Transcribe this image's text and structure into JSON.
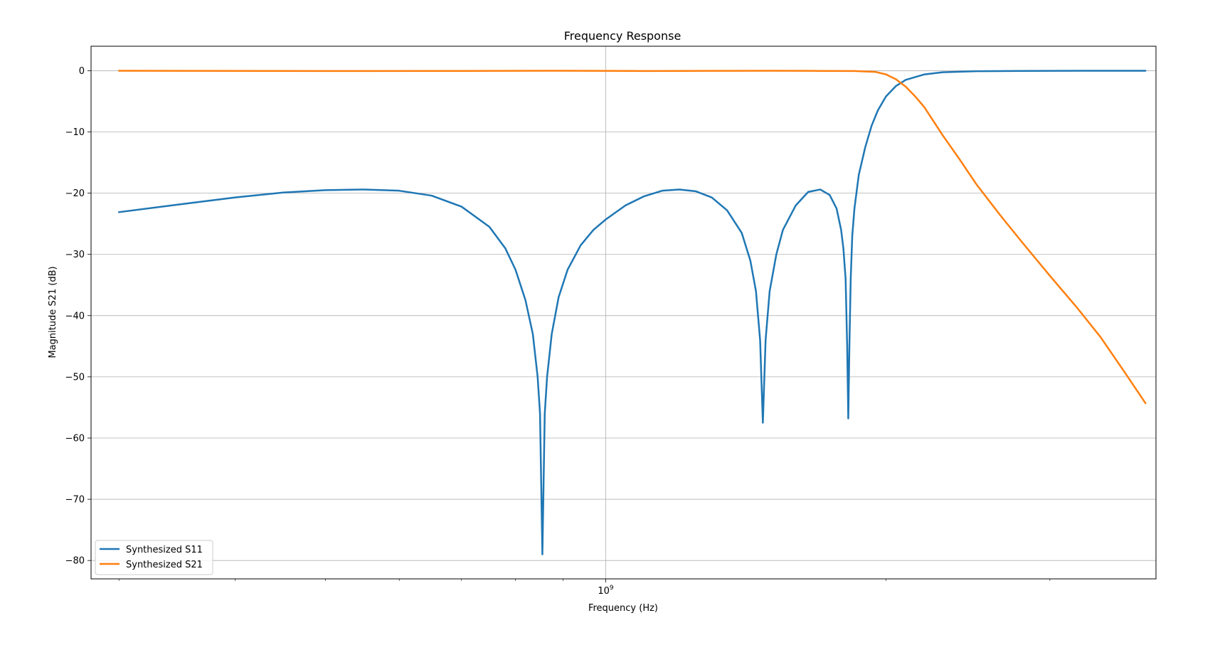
{
  "chart_data": {
    "type": "line",
    "title": "Frequency Response",
    "xlabel": "Frequency (Hz)",
    "ylabel": "Magnitude S21 (dB)",
    "xscale": "log",
    "xlim": [
      280000000,
      3900000000
    ],
    "ylim": [
      -83,
      4
    ],
    "x_ticks": [
      {
        "value": 1000000000,
        "label_base": "10",
        "label_exp": "9"
      }
    ],
    "y_ticks": [
      {
        "value": 0,
        "label": "0"
      },
      {
        "value": -10,
        "label": "−10"
      },
      {
        "value": -20,
        "label": "−20"
      },
      {
        "value": -30,
        "label": "−30"
      },
      {
        "value": -40,
        "label": "−40"
      },
      {
        "value": -50,
        "label": "−50"
      },
      {
        "value": -60,
        "label": "−60"
      },
      {
        "value": -70,
        "label": "−70"
      },
      {
        "value": -80,
        "label": "−80"
      }
    ],
    "grid": true,
    "legend": "lower-left",
    "series": [
      {
        "name": "Synthesized S11",
        "color": "#1f77b4",
        "points": [
          [
            300000000,
            -23.1
          ],
          [
            350000000,
            -21.8
          ],
          [
            400000000,
            -20.7
          ],
          [
            450000000,
            -19.9
          ],
          [
            500000000,
            -19.5
          ],
          [
            550000000,
            -19.4
          ],
          [
            600000000,
            -19.6
          ],
          [
            650000000,
            -20.4
          ],
          [
            700000000,
            -22.2
          ],
          [
            750000000,
            -25.5
          ],
          [
            780000000,
            -29.0
          ],
          [
            800000000,
            -32.5
          ],
          [
            820000000,
            -37.5
          ],
          [
            835000000,
            -43.0
          ],
          [
            845000000,
            -50.0
          ],
          [
            850000000,
            -56.0
          ],
          [
            855000000,
            -79.0
          ],
          [
            860000000,
            -56.0
          ],
          [
            865000000,
            -50.0
          ],
          [
            875000000,
            -43.0
          ],
          [
            890000000,
            -37.0
          ],
          [
            910000000,
            -32.5
          ],
          [
            940000000,
            -28.5
          ],
          [
            970000000,
            -26.0
          ],
          [
            1000000000,
            -24.3
          ],
          [
            1050000000,
            -22.0
          ],
          [
            1100000000,
            -20.5
          ],
          [
            1150000000,
            -19.6
          ],
          [
            1200000000,
            -19.4
          ],
          [
            1250000000,
            -19.7
          ],
          [
            1300000000,
            -20.7
          ],
          [
            1350000000,
            -22.8
          ],
          [
            1400000000,
            -26.5
          ],
          [
            1430000000,
            -31.0
          ],
          [
            1450000000,
            -36.0
          ],
          [
            1465000000,
            -44.0
          ],
          [
            1475000000,
            -57.5
          ],
          [
            1485000000,
            -44.0
          ],
          [
            1500000000,
            -36.0
          ],
          [
            1525000000,
            -30.0
          ],
          [
            1550000000,
            -26.0
          ],
          [
            1600000000,
            -22.0
          ],
          [
            1650000000,
            -19.8
          ],
          [
            1700000000,
            -19.4
          ],
          [
            1740000000,
            -20.3
          ],
          [
            1770000000,
            -22.5
          ],
          [
            1790000000,
            -26.0
          ],
          [
            1800000000,
            -29.0
          ],
          [
            1810000000,
            -34.0
          ],
          [
            1817000000,
            -45.0
          ],
          [
            1822000000,
            -56.8
          ],
          [
            1827000000,
            -45.0
          ],
          [
            1833000000,
            -34.0
          ],
          [
            1840000000,
            -27.0
          ],
          [
            1850000000,
            -22.5
          ],
          [
            1870000000,
            -17.0
          ],
          [
            1900000000,
            -12.5
          ],
          [
            1930000000,
            -9.0
          ],
          [
            1960000000,
            -6.5
          ],
          [
            2000000000,
            -4.2
          ],
          [
            2050000000,
            -2.5
          ],
          [
            2100000000,
            -1.5
          ],
          [
            2200000000,
            -0.6
          ],
          [
            2300000000,
            -0.25
          ],
          [
            2500000000,
            -0.08
          ],
          [
            2800000000,
            -0.03
          ],
          [
            3300000000,
            -0.01
          ],
          [
            3800000000,
            0.0
          ]
        ]
      },
      {
        "name": "Synthesized S21",
        "color": "#ff7f0e",
        "points": [
          [
            300000000,
            0.0
          ],
          [
            500000000,
            -0.05
          ],
          [
            700000000,
            -0.03
          ],
          [
            900000000,
            0.0
          ],
          [
            1100000000,
            -0.05
          ],
          [
            1300000000,
            -0.02
          ],
          [
            1500000000,
            0.0
          ],
          [
            1700000000,
            -0.03
          ],
          [
            1850000000,
            -0.05
          ],
          [
            1950000000,
            -0.2
          ],
          [
            2000000000,
            -0.6
          ],
          [
            2050000000,
            -1.4
          ],
          [
            2100000000,
            -2.6
          ],
          [
            2150000000,
            -4.2
          ],
          [
            2200000000,
            -6.0
          ],
          [
            2300000000,
            -10.5
          ],
          [
            2400000000,
            -14.5
          ],
          [
            2500000000,
            -18.5
          ],
          [
            2650000000,
            -23.5
          ],
          [
            2800000000,
            -28.0
          ],
          [
            3000000000,
            -33.5
          ],
          [
            3200000000,
            -38.5
          ],
          [
            3400000000,
            -43.5
          ],
          [
            3600000000,
            -49.0
          ],
          [
            3800000000,
            -54.3
          ]
        ]
      }
    ]
  }
}
